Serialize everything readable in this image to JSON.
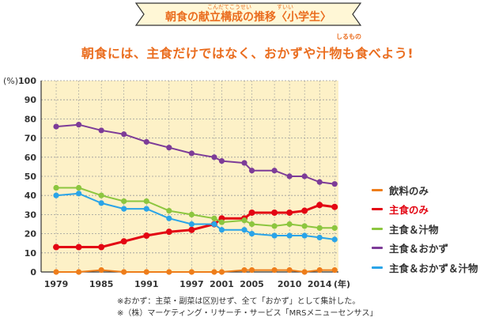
{
  "header": {
    "title": "朝食の献立構成の推移〈小学生〉",
    "ruby_kondate_kousei": "こんだてこうせい",
    "ruby_suii": "すいい"
  },
  "subtitle": {
    "text": "朝食には、主食だけではなく、おかずや汁物も食べよう!",
    "ruby_shirumono": "しるもの"
  },
  "notes": [
    "※おかず：主菜・副菜は区別せず、全て「おかず」として集計した。",
    "※（株）マーケティング・リサーチ・サービス「MRSメニューセンサス」"
  ],
  "colors": {
    "accent_orange": "#ea6d1f",
    "banner_fill": "#fff7d6",
    "plot_bg": "#fdf1c7",
    "grid": "#9a9a9a"
  },
  "chart_data": {
    "type": "line",
    "ylabel": "(%)",
    "xlabel": "(年)",
    "ylim": [
      0,
      100
    ],
    "yticks": [
      0,
      10,
      20,
      30,
      40,
      50,
      60,
      70,
      80,
      90,
      100
    ],
    "xtick_labels": [
      "1979",
      "1985",
      "1991",
      "1997",
      "2001",
      "2005",
      "2010",
      "2014"
    ],
    "x": [
      1979,
      1982,
      1985,
      1988,
      1991,
      1994,
      1997,
      2000,
      2001,
      2004,
      2005,
      2008,
      2010,
      2012,
      2014,
      2016
    ],
    "legend_placement": "right",
    "grid": true,
    "series": [
      {
        "name": "飲料のみ",
        "color": "#ee7d1a",
        "emphasis": false,
        "values": [
          0,
          0,
          1,
          0,
          0,
          0,
          0,
          0,
          0,
          1,
          1,
          1,
          1,
          0,
          1,
          1
        ]
      },
      {
        "name": "主食のみ",
        "color": "#e30613",
        "emphasis": true,
        "values": [
          13,
          13,
          13,
          16,
          19,
          21,
          22,
          25,
          28,
          28,
          31,
          31,
          31,
          32,
          35,
          34
        ]
      },
      {
        "name": "主食＆汁物",
        "color": "#8cc63f",
        "emphasis": false,
        "values": [
          44,
          44,
          40,
          37,
          37,
          32,
          30,
          28,
          26,
          27,
          25,
          24,
          25,
          24,
          23,
          23
        ]
      },
      {
        "name": "主食＆おかず",
        "color": "#7d3c98",
        "emphasis": false,
        "values": [
          76,
          77,
          74,
          72,
          68,
          65,
          62,
          60,
          58,
          57,
          53,
          53,
          50,
          50,
          47,
          46
        ]
      },
      {
        "name": "主食＆おかず＆汁物",
        "color": "#2aa4e8",
        "emphasis": false,
        "values": [
          40,
          41,
          36,
          33,
          33,
          28,
          25,
          25,
          22,
          22,
          20,
          19,
          19,
          19,
          18,
          17
        ]
      }
    ]
  }
}
